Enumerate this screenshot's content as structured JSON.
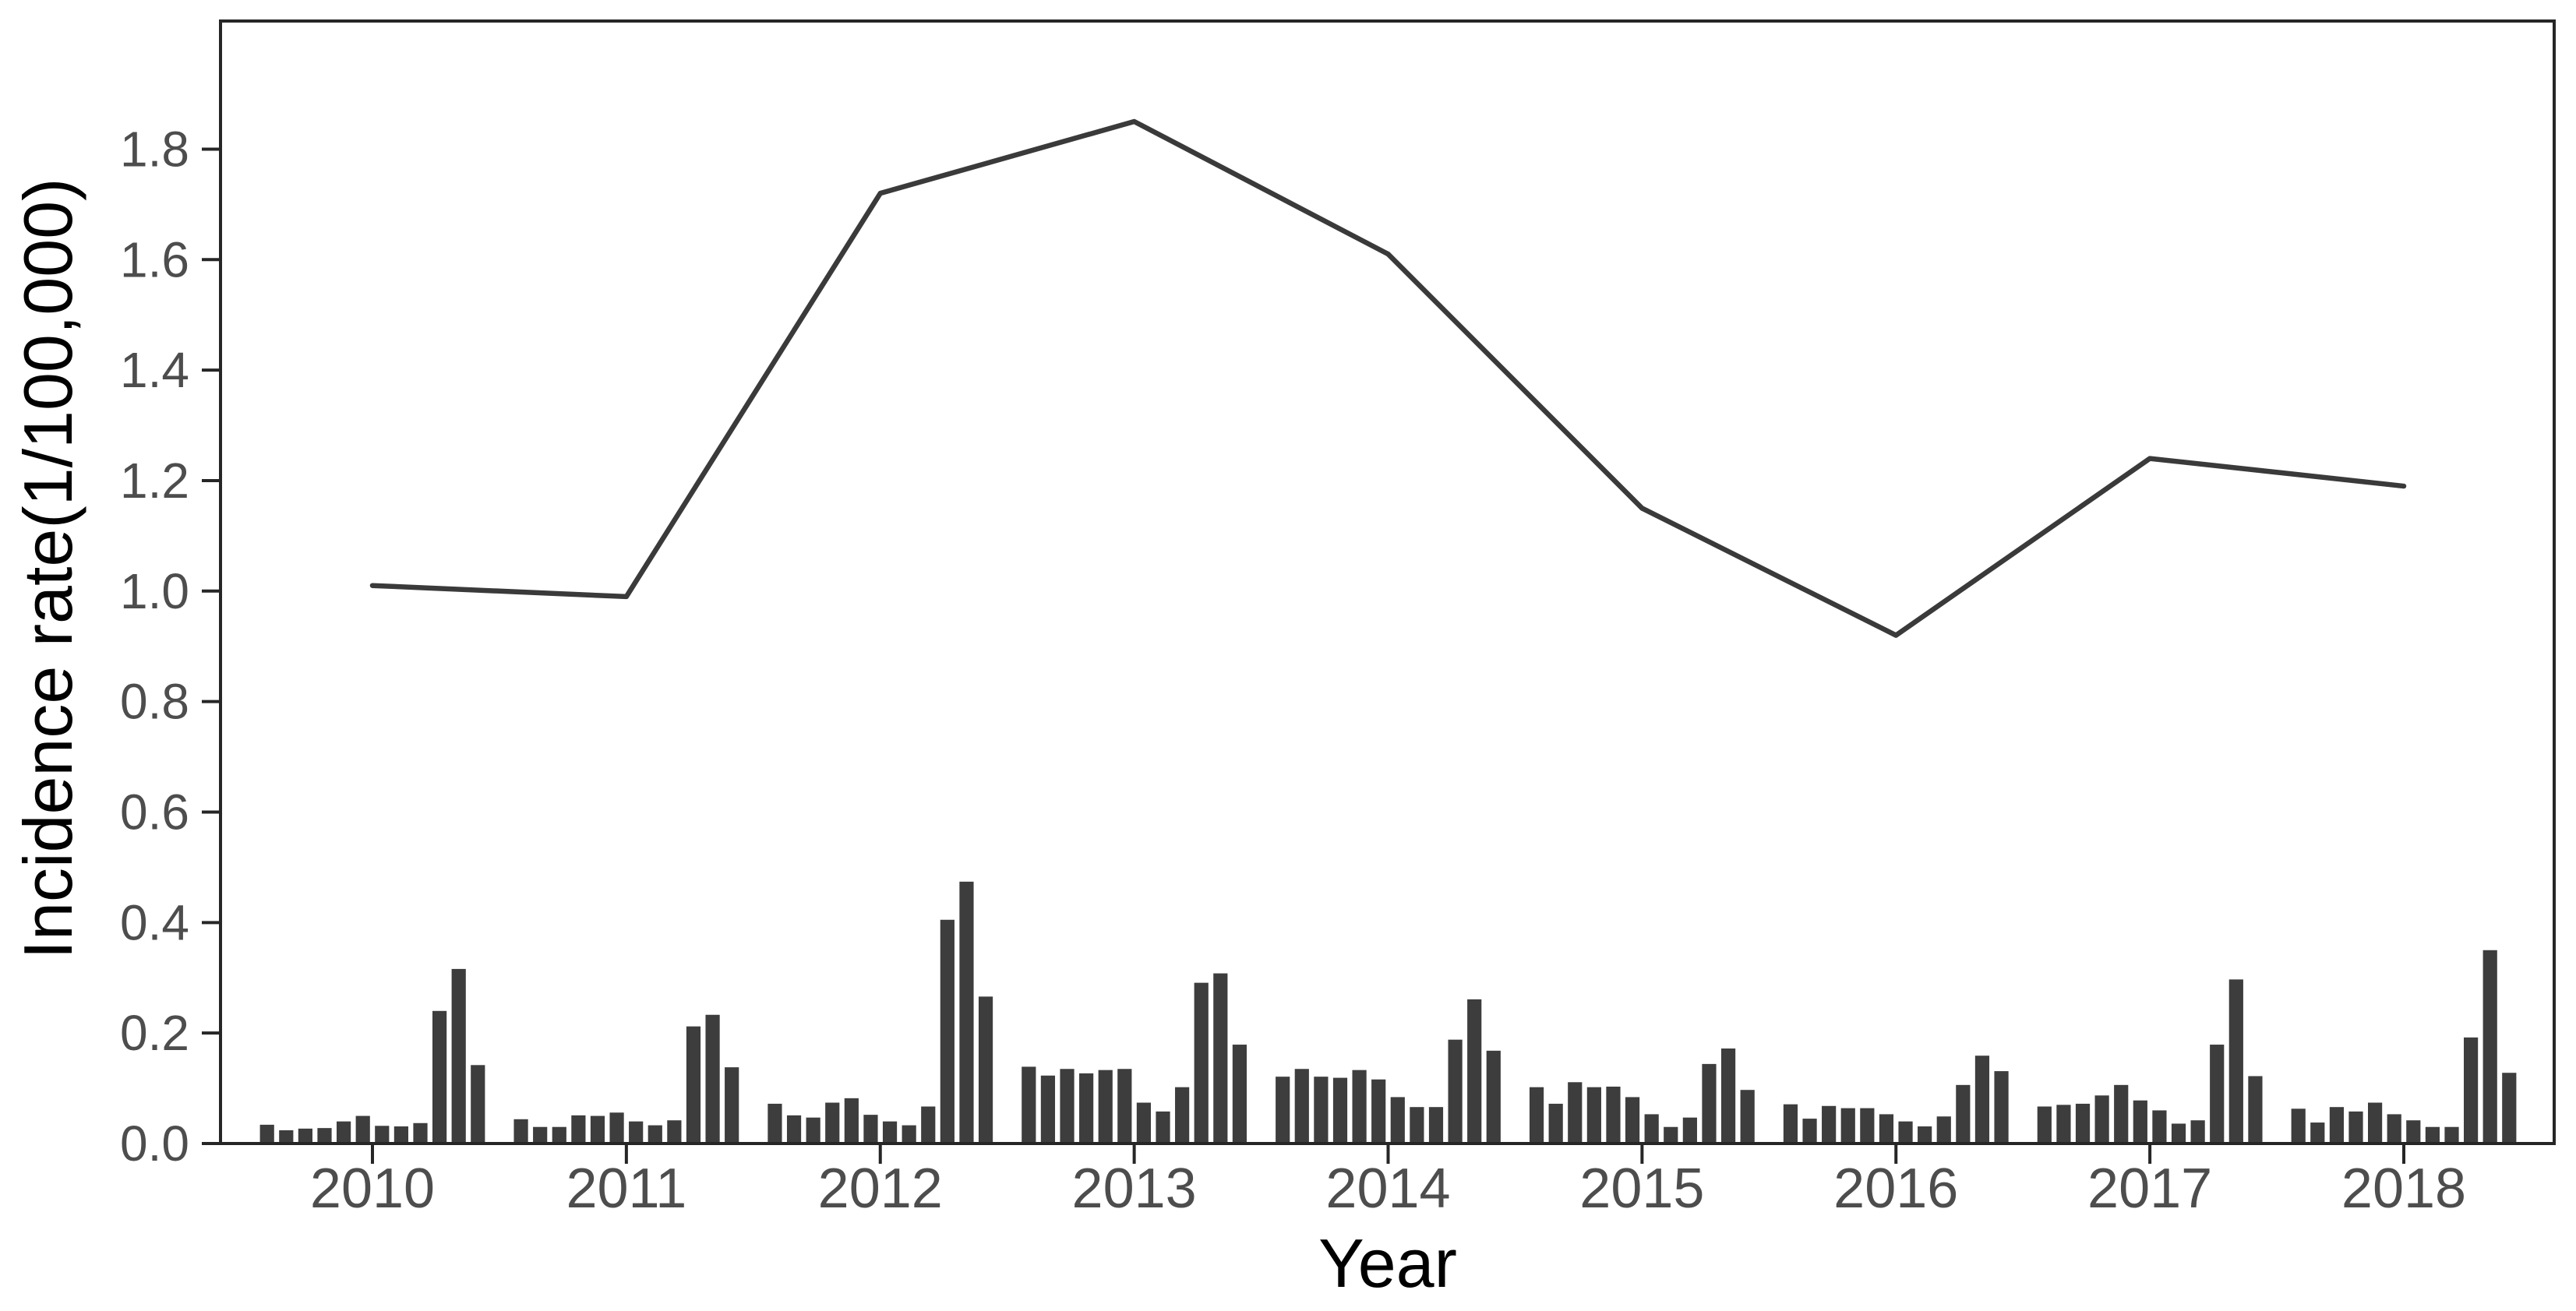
{
  "page": {
    "background": "#ffffff"
  },
  "axes": {
    "y": {
      "title": "Incidence rate(1/100,000)",
      "ticks": [
        "0.0",
        "0.2",
        "0.4",
        "0.6",
        "0.8",
        "1.0",
        "1.2",
        "1.4",
        "1.6",
        "1.8"
      ],
      "tick_values": [
        0.0,
        0.2,
        0.4,
        0.6,
        0.8,
        1.0,
        1.2,
        1.4,
        1.6,
        1.8
      ],
      "range": [
        0,
        2.03
      ],
      "label_color": "#4d4d4d",
      "title_color": "#000000"
    },
    "x": {
      "title": "Year",
      "ticks": [
        "2010",
        "2011",
        "2012",
        "2013",
        "2014",
        "2015",
        "2016",
        "2017",
        "2018"
      ],
      "tick_values": [
        2010,
        2011,
        2012,
        2013,
        2014,
        2015,
        2016,
        2017,
        2018
      ],
      "label_color": "#4d4d4d",
      "title_color": "#000000"
    }
  },
  "chart_data": [
    {
      "type": "bar",
      "name": "monthly-incidence-rate",
      "title": "",
      "xlabel": "Year",
      "ylabel": "Incidence rate(1/100,000)",
      "ylim": [
        0,
        2.03
      ],
      "grid": false,
      "legend": "none",
      "bar_color": "#3d3d3d",
      "months_per_year": 12,
      "series": [
        {
          "name": "2010",
          "values": [
            0.034,
            0.024,
            0.027,
            0.028,
            0.04,
            0.05,
            0.032,
            0.031,
            0.037,
            0.24,
            0.316,
            0.142
          ]
        },
        {
          "name": "2011",
          "values": [
            0.044,
            0.03,
            0.03,
            0.051,
            0.05,
            0.056,
            0.04,
            0.033,
            0.042,
            0.212,
            0.233,
            0.138
          ]
        },
        {
          "name": "2012",
          "values": [
            0.072,
            0.051,
            0.047,
            0.074,
            0.082,
            0.052,
            0.04,
            0.033,
            0.067,
            0.405,
            0.474,
            0.266
          ]
        },
        {
          "name": "2013",
          "values": [
            0.139,
            0.123,
            0.135,
            0.127,
            0.133,
            0.135,
            0.074,
            0.058,
            0.102,
            0.291,
            0.308,
            0.179
          ]
        },
        {
          "name": "2014",
          "values": [
            0.121,
            0.135,
            0.121,
            0.119,
            0.133,
            0.116,
            0.084,
            0.066,
            0.066,
            0.188,
            0.261,
            0.168
          ]
        },
        {
          "name": "2015",
          "values": [
            0.102,
            0.072,
            0.111,
            0.102,
            0.103,
            0.084,
            0.053,
            0.03,
            0.047,
            0.144,
            0.172,
            0.097
          ]
        },
        {
          "name": "2016",
          "values": [
            0.071,
            0.045,
            0.068,
            0.064,
            0.064,
            0.053,
            0.04,
            0.031,
            0.049,
            0.106,
            0.159,
            0.131
          ]
        },
        {
          "name": "2017",
          "values": [
            0.067,
            0.07,
            0.072,
            0.087,
            0.106,
            0.078,
            0.06,
            0.036,
            0.042,
            0.179,
            0.297,
            0.122
          ]
        },
        {
          "name": "2018",
          "values": [
            0.063,
            0.038,
            0.066,
            0.058,
            0.074,
            0.053,
            0.042,
            0.03,
            0.03,
            0.192,
            0.35,
            0.128
          ]
        }
      ]
    },
    {
      "type": "line",
      "name": "annual-incidence-rate",
      "x": [
        2010,
        2011,
        2012,
        2013,
        2014,
        2015,
        2016,
        2017,
        2018
      ],
      "values": [
        1.01,
        0.99,
        1.72,
        1.85,
        1.61,
        1.15,
        0.92,
        1.24,
        1.19
      ],
      "line_color": "#3a3a3a",
      "marker": "none"
    }
  ],
  "style": {
    "panel_border_color": "#262626",
    "tick_mark_color": "#262626"
  }
}
